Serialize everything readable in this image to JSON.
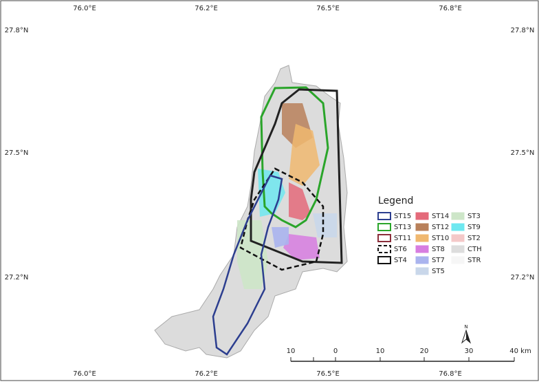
{
  "map": {
    "top_labels": [
      "76.0°E",
      "76.2°E",
      "76.5°E",
      "76.8°E"
    ],
    "bottom_labels": [
      "76.0°E",
      "76.2°E",
      "76.5°E",
      "76.8°E"
    ],
    "left_labels": [
      "27.8°N",
      "27.5°N",
      "27.2°N"
    ],
    "right_labels": [
      "27.8°N",
      "27.5°N",
      "27.2°N"
    ],
    "legend": {
      "title": "Legend",
      "items": [
        {
          "label": "ST15",
          "fill": "none",
          "stroke": "#2c3e8f",
          "dash": false
        },
        {
          "label": "ST13",
          "fill": "none",
          "stroke": "#2aa52a",
          "dash": false
        },
        {
          "label": "ST11",
          "fill": "none",
          "stroke": "#8b2e3a",
          "dash": false
        },
        {
          "label": "ST6",
          "fill": "none",
          "stroke": "#111111",
          "dash": true
        },
        {
          "label": "ST4",
          "fill": "none",
          "stroke": "#111111",
          "dash": false
        },
        {
          "label": "ST14",
          "fill": "#e46a7a",
          "stroke": "none",
          "dash": false
        },
        {
          "label": "ST12",
          "fill": "#b9805a",
          "stroke": "none",
          "dash": false
        },
        {
          "label": "ST10",
          "fill": "#f0b870",
          "stroke": "none",
          "dash": false
        },
        {
          "label": "ST8",
          "fill": "#d77de0",
          "stroke": "none",
          "dash": false
        },
        {
          "label": "ST7",
          "fill": "#aab4ee",
          "stroke": "none",
          "dash": false
        },
        {
          "label": "ST5",
          "fill": "#c9d7ea",
          "stroke": "none",
          "dash": false
        },
        {
          "label": "ST3",
          "fill": "#cde6c8",
          "stroke": "none",
          "dash": false
        },
        {
          "label": "ST9",
          "fill": "#6ee8f0",
          "stroke": "none",
          "dash": false
        },
        {
          "label": "ST2",
          "fill": "#f4c8c8",
          "stroke": "none",
          "dash": false
        },
        {
          "label": "CTH",
          "fill": "#dddddd",
          "stroke": "none",
          "dash": false
        },
        {
          "label": "STR",
          "fill": "#f6f6f6",
          "stroke": "none",
          "dash": false
        }
      ]
    },
    "scale_labels": [
      "10",
      "0",
      "10",
      "20",
      "30",
      "40 km"
    ],
    "north": "N"
  }
}
